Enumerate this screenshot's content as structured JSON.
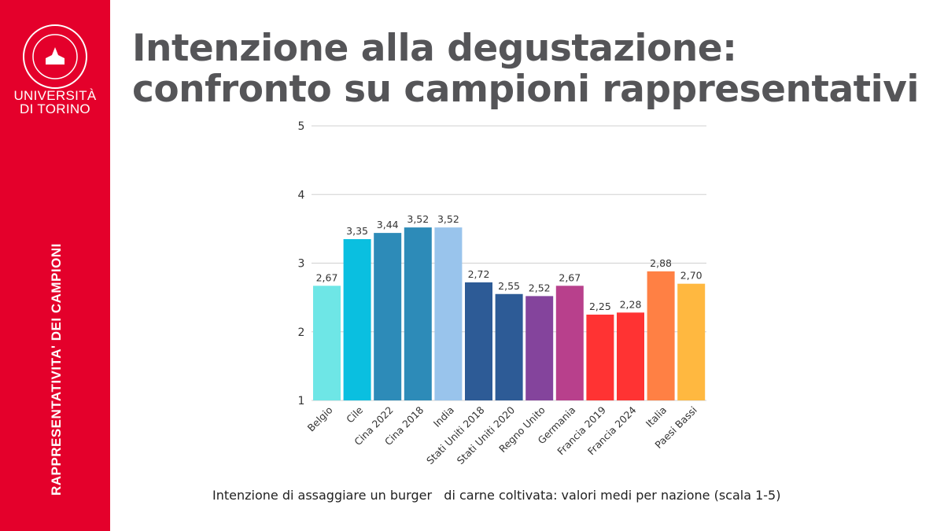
{
  "sidebar": {
    "logo_line1": "UNIVERSITÀ",
    "logo_line2": "DI TORINO",
    "logo_seal_text": "UNIVERSITAS STUDII TAURINENSIS 1404",
    "section_label": "RAPPRESENTATIVITA' DEI CAMPIONI",
    "brand_color": "#e4002b"
  },
  "title": "Intenzione alla degustazione: confronto su campioni rappresentativi",
  "caption": "Intenzione di assaggiare un burger   di carne coltivata: valori medi per nazione (scala 1-5)",
  "chart_data": {
    "type": "bar",
    "categories": [
      "Belgio",
      "Cile",
      "Cina 2022",
      "Cina 2018",
      "India",
      "Stati Uniti 2018",
      "Stati Uniti 2020",
      "Regno Unito",
      "Germania",
      "Francia 2019",
      "Francia 2024",
      "Italia",
      "Paesi Bassi"
    ],
    "values": [
      2.67,
      3.35,
      3.44,
      3.52,
      3.52,
      2.72,
      2.55,
      2.52,
      2.67,
      2.25,
      2.28,
      2.88,
      2.7
    ],
    "data_labels": [
      "2,67",
      "3,35",
      "3,44",
      "3,52",
      "3,52",
      "2,72",
      "2,55",
      "2,52",
      "2,67",
      "2,25",
      "2,28",
      "2,88",
      "2,70"
    ],
    "colors": [
      "#6ee6e6",
      "#0abfe0",
      "#2d8bb8",
      "#2d8bb8",
      "#99c4ec",
      "#2d5b96",
      "#2d5b96",
      "#84449c",
      "#b8408c",
      "#ff3333",
      "#ff3333",
      "#ff8044",
      "#ffb840"
    ],
    "ylim": [
      1,
      5
    ],
    "yticks": [
      "1",
      "2",
      "3",
      "4",
      "5"
    ],
    "grid": true,
    "title": "",
    "xlabel": "",
    "ylabel": ""
  }
}
